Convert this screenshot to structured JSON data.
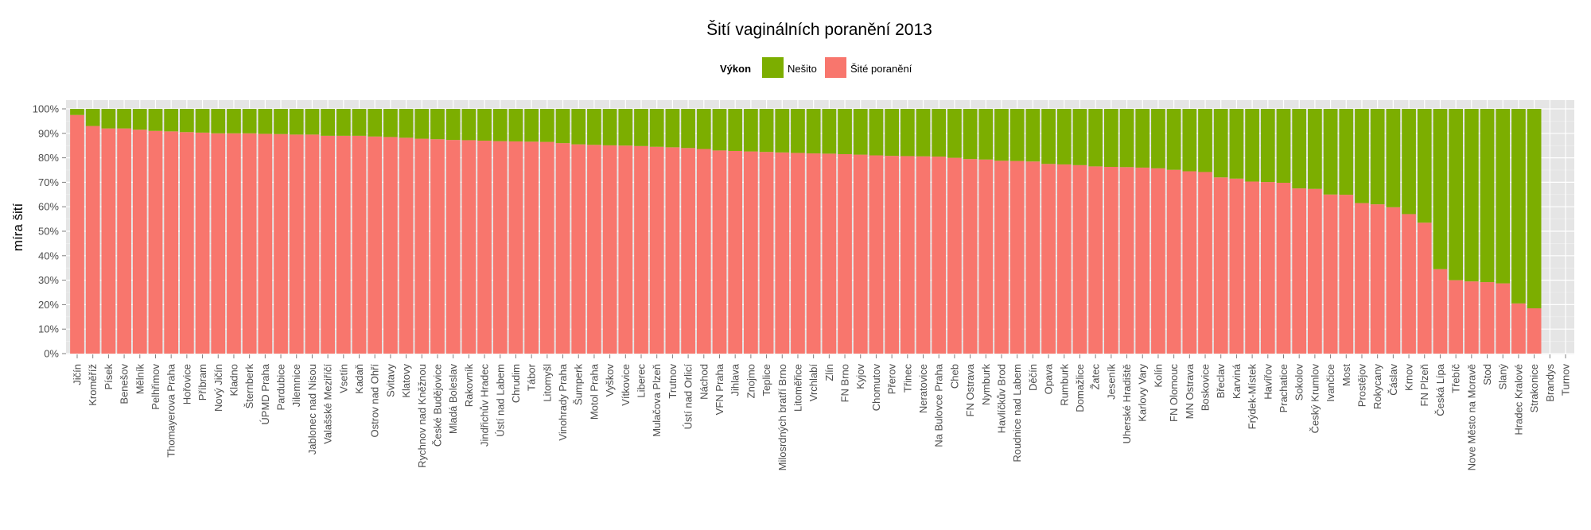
{
  "chart_data": {
    "type": "bar",
    "stacked": true,
    "title": "Šití vaginálních poranění 2013",
    "xlabel": "",
    "ylabel": "míra šití",
    "ylim": [
      0,
      1
    ],
    "y_ticks": [
      "0%",
      "10%",
      "20%",
      "30%",
      "40%",
      "50%",
      "60%",
      "70%",
      "80%",
      "90%",
      "100%"
    ],
    "grid": true,
    "legend": {
      "title": "Výkon",
      "position": "top-center"
    },
    "categories": [
      "Jičín",
      "Kroměříž",
      "Písek",
      "Benešov",
      "Mělník",
      "Pelhřimov",
      "Thomayerova Praha",
      "Hořovice",
      "Příbram",
      "Nový Jičín",
      "Kladno",
      "Šternberk",
      "ÚPMD Praha",
      "Pardubice",
      "Jilemnice",
      "Jablonec nad Nisou",
      "Valašské Meziříčí",
      "Vsetín",
      "Kadaň",
      "Ostrov nad Ohří",
      "Svitavy",
      "Klatovy",
      "Rychnov nad Kněžnou",
      "České Budějovice",
      "Mladá Boleslav",
      "Rakovník",
      "Jindřichův Hradec",
      "Ústí nad Labem",
      "Chrudim",
      "Tábor",
      "Litomyšl",
      "Vinohrady Praha",
      "Šumperk",
      "Motol Praha",
      "Vyškov",
      "Vítkovice",
      "Liberec",
      "Mulačova Plzeň",
      "Trutnov",
      "Ústí nad Orlicí",
      "Náchod",
      "VFN Praha",
      "Jihlava",
      "Znojmo",
      "Teplice",
      "Milosrdných bratří Brno",
      "Litoměřice",
      "Vrchlabí",
      "Zlín",
      "FN Brno",
      "Kyjov",
      "Chomutov",
      "Přerov",
      "Třinec",
      "Neratovice",
      "Na Bulovce Praha",
      "Cheb",
      "FN Ostrava",
      "Nymburk",
      "Havlíčkův Brod",
      "Roudnice nad Labem",
      "Děčín",
      "Opava",
      "Rumburk",
      "Domažlice",
      "Žatec",
      "Jeseník",
      "Uherské Hradiště",
      "Karlovy Vary",
      "Kolín",
      "FN Olomouc",
      "MN Ostrava",
      "Boskovice",
      "Břeclav",
      "Karviná",
      "Frýdek-Místek",
      "Havířov",
      "Prachatice",
      "Sokolov",
      "Český Krumlov",
      "Ivančice",
      "Most",
      "Prostějov",
      "Rokycany",
      "Čáslav",
      "Krnov",
      "FN Plzeň",
      "Česká Lípa",
      "Třebíč",
      "Nove Město na Moravě",
      "Stod",
      "Slaný",
      "Hradec Kralové",
      "Strakonice",
      "Brandys",
      "Turnov"
    ],
    "series": [
      {
        "name": "Šité poranění",
        "color": "#F8766D",
        "values": [
          0.975,
          0.93,
          0.92,
          0.92,
          0.915,
          0.91,
          0.908,
          0.905,
          0.903,
          0.9,
          0.9,
          0.9,
          0.898,
          0.897,
          0.895,
          0.895,
          0.89,
          0.89,
          0.89,
          0.887,
          0.885,
          0.882,
          0.878,
          0.876,
          0.873,
          0.872,
          0.87,
          0.868,
          0.867,
          0.866,
          0.865,
          0.86,
          0.855,
          0.853,
          0.851,
          0.85,
          0.848,
          0.845,
          0.843,
          0.84,
          0.836,
          0.83,
          0.828,
          0.826,
          0.824,
          0.822,
          0.82,
          0.818,
          0.817,
          0.815,
          0.813,
          0.81,
          0.808,
          0.807,
          0.806,
          0.805,
          0.8,
          0.795,
          0.793,
          0.788,
          0.787,
          0.785,
          0.775,
          0.773,
          0.77,
          0.765,
          0.763,
          0.762,
          0.76,
          0.757,
          0.751,
          0.745,
          0.742,
          0.72,
          0.715,
          0.703,
          0.701,
          0.698,
          0.675,
          0.673,
          0.65,
          0.649,
          0.615,
          0.61,
          0.598,
          0.57,
          0.535,
          0.345,
          0.3,
          0.295,
          0.292,
          0.287,
          0.205,
          0.185,
          0,
          0
        ]
      },
      {
        "name": "Nešito",
        "color": "#7CAE00",
        "values": [
          0.025,
          0.07,
          0.08,
          0.08,
          0.085,
          0.09,
          0.092,
          0.095,
          0.097,
          0.1,
          0.1,
          0.1,
          0.102,
          0.103,
          0.105,
          0.105,
          0.11,
          0.11,
          0.11,
          0.113,
          0.115,
          0.118,
          0.122,
          0.124,
          0.127,
          0.128,
          0.13,
          0.132,
          0.133,
          0.134,
          0.135,
          0.14,
          0.145,
          0.147,
          0.149,
          0.15,
          0.152,
          0.155,
          0.157,
          0.16,
          0.164,
          0.17,
          0.172,
          0.174,
          0.176,
          0.178,
          0.18,
          0.182,
          0.183,
          0.185,
          0.187,
          0.19,
          0.192,
          0.193,
          0.194,
          0.195,
          0.2,
          0.205,
          0.207,
          0.212,
          0.213,
          0.215,
          0.225,
          0.227,
          0.23,
          0.235,
          0.237,
          0.238,
          0.24,
          0.243,
          0.249,
          0.255,
          0.258,
          0.28,
          0.285,
          0.297,
          0.299,
          0.302,
          0.325,
          0.327,
          0.35,
          0.351,
          0.385,
          0.39,
          0.402,
          0.43,
          0.465,
          0.655,
          0.7,
          0.705,
          0.708,
          0.713,
          0.795,
          0.815,
          0,
          0
        ]
      }
    ]
  }
}
